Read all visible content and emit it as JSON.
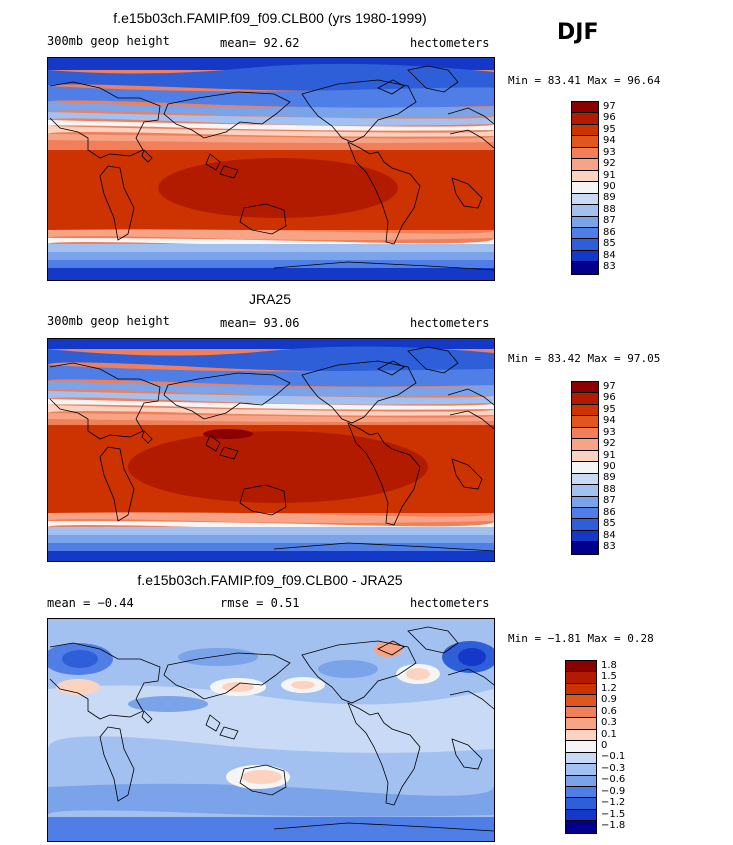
{
  "season": "DJF",
  "panels": [
    {
      "title": "f.e15b03ch.FAMIP.f09_f09.CLB00 (yrs 1980-1999)",
      "left_label": "300mb geop height",
      "center_label": "mean=  92.62",
      "right_label": "hectometers",
      "minmax": "Min =  83.41 Max =  96.64",
      "levels": [
        "97",
        "96",
        "95",
        "94",
        "93",
        "92",
        "91",
        "90",
        "89",
        "88",
        "87",
        "86",
        "85",
        "84",
        "83"
      ],
      "colors": [
        "#8b0000",
        "#b31b00",
        "#cc3300",
        "#e0561f",
        "#f07f5a",
        "#f7a385",
        "#fcd3c0",
        "#f5f5f5",
        "#c8daf5",
        "#a3c1f0",
        "#7aa3ea",
        "#4f7fe6",
        "#2e5fd9",
        "#1438c8",
        "#00008c"
      ]
    },
    {
      "title": "JRA25",
      "left_label": "300mb geop height",
      "center_label": "mean=  93.06",
      "right_label": "hectometers",
      "minmax": "Min =  83.42 Max =  97.05",
      "levels": [
        "97",
        "96",
        "95",
        "94",
        "93",
        "92",
        "91",
        "90",
        "89",
        "88",
        "87",
        "86",
        "85",
        "84",
        "83"
      ],
      "colors": [
        "#8b0000",
        "#b31b00",
        "#cc3300",
        "#e0561f",
        "#f07f5a",
        "#f7a385",
        "#fcd3c0",
        "#f5f5f5",
        "#c8daf5",
        "#a3c1f0",
        "#7aa3ea",
        "#4f7fe6",
        "#2e5fd9",
        "#1438c8",
        "#00008c"
      ]
    },
    {
      "title": "f.e15b03ch.FAMIP.f09_f09.CLB00 - JRA25",
      "left_label": "mean =  −0.44",
      "center_label": "rmse =   0.51",
      "right_label": "hectometers",
      "minmax": "Min =  −1.81 Max =   0.28",
      "levels": [
        "1.8",
        "1.5",
        "1.2",
        "0.9",
        "0.6",
        "0.3",
        "0.1",
        "0",
        "−0.1",
        "−0.3",
        "−0.6",
        "−0.9",
        "−1.2",
        "−1.5",
        "−1.8"
      ],
      "colors": [
        "#8b0000",
        "#b31b00",
        "#cc3300",
        "#e0561f",
        "#f07f5a",
        "#f7a385",
        "#fcd3c0",
        "#f5f5f5",
        "#c8daf5",
        "#a3c1f0",
        "#7aa3ea",
        "#4f7fe6",
        "#2e5fd9",
        "#1438c8",
        "#00008c"
      ]
    }
  ]
}
